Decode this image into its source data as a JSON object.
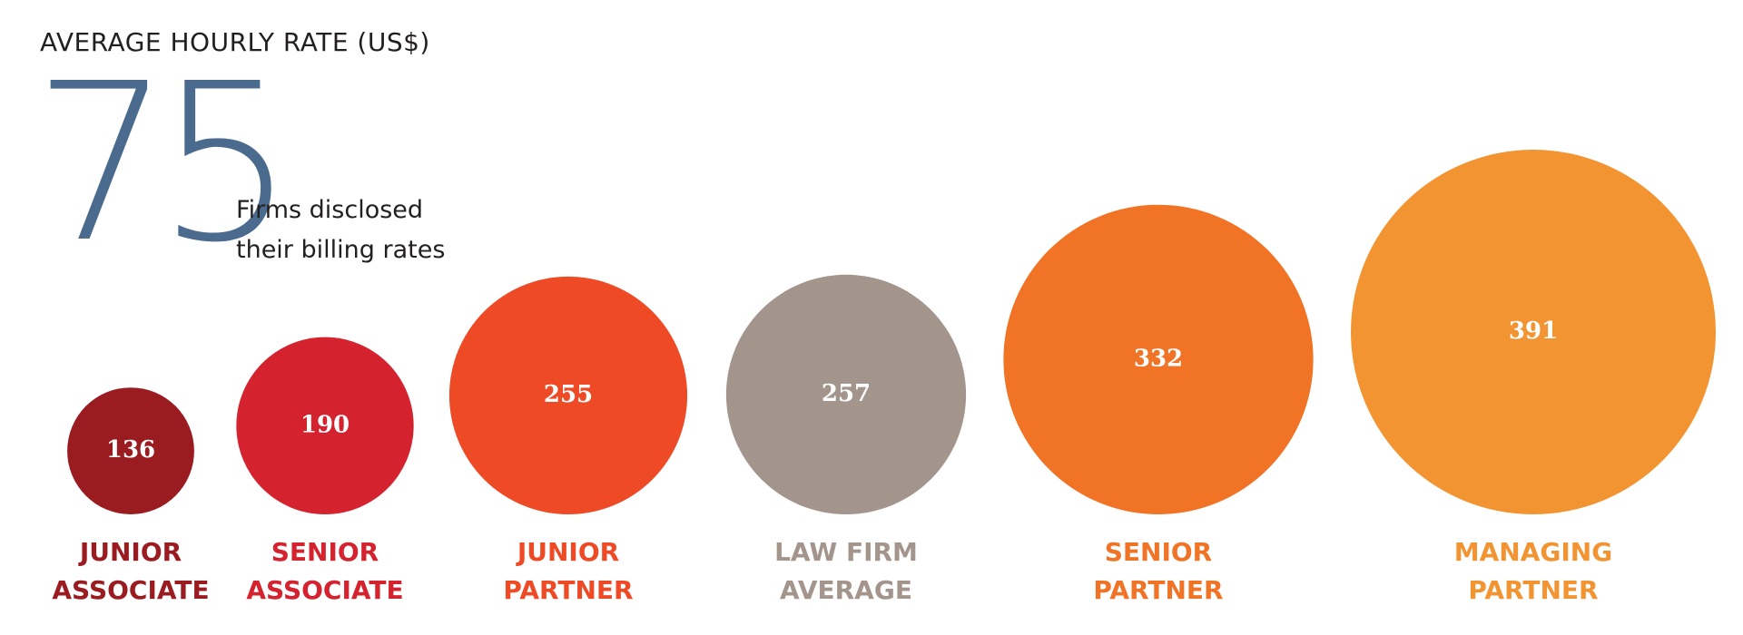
{
  "chart_data": {
    "type": "bubble",
    "title": "AVERAGE HOURLY RATE (US$)",
    "highlight": {
      "value": 75,
      "text": "Firms disclosed their billing rates"
    },
    "categories": [
      "JUNIOR ASSOCIATE",
      "SENIOR ASSOCIATE",
      "JUNIOR PARTNER",
      "LAW FIRM AVERAGE",
      "SENIOR PARTNER",
      "MANAGING PARTNER"
    ],
    "values": [
      136,
      190,
      255,
      257,
      332,
      391
    ],
    "colors": [
      "#9a1b20",
      "#d4232e",
      "#ee4a26",
      "#a3948c",
      "#f07326",
      "#f39433"
    ]
  }
}
